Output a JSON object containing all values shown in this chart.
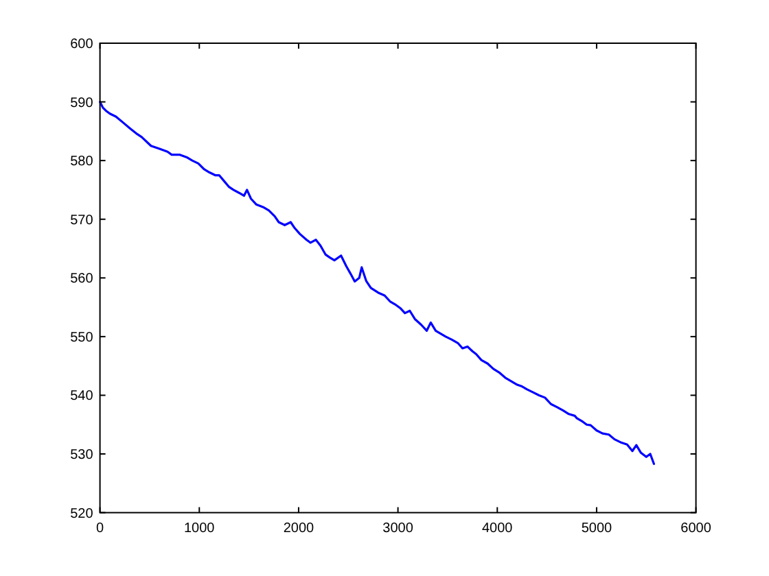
{
  "chart_data": {
    "type": "line",
    "x": [
      0,
      30,
      60,
      100,
      160,
      238,
      300,
      376,
      420,
      514,
      600,
      680,
      722,
      800,
      880,
      929,
      990,
      1050,
      1100,
      1160,
      1200,
      1250,
      1300,
      1344,
      1400,
      1450,
      1480,
      1520,
      1575,
      1650,
      1700,
      1759,
      1800,
      1860,
      1920,
      1960,
      2012,
      2080,
      2120,
      2174,
      2220,
      2270,
      2312,
      2360,
      2427,
      2480,
      2530,
      2565,
      2610,
      2635,
      2680,
      2727,
      2800,
      2866,
      2920,
      2970,
      3027,
      3070,
      3119,
      3170,
      3235,
      3290,
      3330,
      3380,
      3430,
      3480,
      3540,
      3603,
      3650,
      3700,
      3750,
      3788,
      3840,
      3903,
      3960,
      4018,
      4080,
      4130,
      4200,
      4249,
      4300,
      4360,
      4420,
      4480,
      4540,
      4600,
      4663,
      4720,
      4780,
      4801,
      4860,
      4900,
      4940,
      5000,
      5060,
      5123,
      5180,
      5240,
      5307,
      5360,
      5400,
      5446,
      5500,
      5540,
      5577
    ],
    "series": [
      {
        "color": "#0000ff",
        "values": [
          590,
          589,
          588.5,
          588,
          587.5,
          586.4,
          585.5,
          584.5,
          584,
          582.5,
          582,
          581.5,
          581,
          581,
          580.5,
          580,
          579.5,
          578.5,
          578,
          577.5,
          577.5,
          576.5,
          575.5,
          575,
          574.5,
          574,
          575,
          573.5,
          572.5,
          572,
          571.5,
          570.5,
          569.5,
          569,
          569.5,
          568.5,
          567.5,
          566.5,
          566,
          566.5,
          565.5,
          564,
          563.5,
          563,
          563.8,
          562,
          560.5,
          559.4,
          560,
          561.8,
          559.5,
          558.3,
          557.5,
          557,
          556,
          555.5,
          554.8,
          554,
          554.4,
          553,
          552,
          551,
          552.4,
          551,
          550.5,
          550,
          549.5,
          548.9,
          548,
          548.3,
          547.5,
          547,
          546,
          545.4,
          544.5,
          543.9,
          543,
          542.5,
          541.8,
          541.5,
          541,
          540.5,
          540,
          539.6,
          538.5,
          538,
          537.4,
          536.8,
          536.5,
          536.1,
          535.5,
          535,
          534.9,
          534,
          533.5,
          533.3,
          532.5,
          532,
          531.6,
          530.5,
          531.5,
          530.2,
          529.5,
          530,
          528.3
        ]
      }
    ],
    "xlim": [
      0,
      6000
    ],
    "ylim": [
      520,
      600
    ],
    "xticks": [
      0,
      1000,
      2000,
      3000,
      4000,
      5000,
      6000
    ],
    "yticks": [
      520,
      530,
      540,
      550,
      560,
      570,
      580,
      590,
      600
    ]
  }
}
